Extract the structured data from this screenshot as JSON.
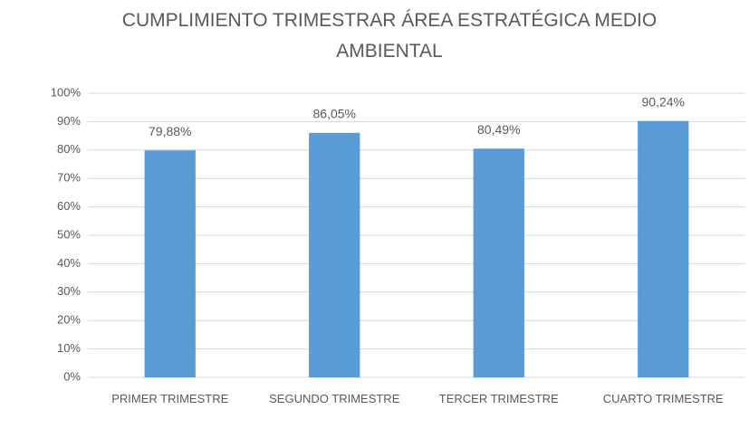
{
  "chart_data": {
    "type": "bar",
    "title": "CUMPLIMIENTO TRIMESTRAR ÁREA ESTRATÉGICA MEDIO AMBIENTAL",
    "categories": [
      "PRIMER TRIMESTRE",
      "SEGUNDO TRIMESTRE",
      "TERCER TRIMESTRE",
      "CUARTO TRIMESTRE"
    ],
    "values": [
      79.88,
      86.05,
      80.49,
      90.24
    ],
    "value_labels": [
      "79,88%",
      "86,05%",
      "80,49%",
      "90,24%"
    ],
    "color": "#5b9bd5",
    "ylim": [
      0,
      100
    ],
    "yticks": [
      {
        "value": 0,
        "label": "0%"
      },
      {
        "value": 10,
        "label": "10%"
      },
      {
        "value": 20,
        "label": "20%"
      },
      {
        "value": 30,
        "label": "30%"
      },
      {
        "value": 40,
        "label": "40%"
      },
      {
        "value": 50,
        "label": "50%"
      },
      {
        "value": 60,
        "label": "60%"
      },
      {
        "value": 70,
        "label": "70%"
      },
      {
        "value": 80,
        "label": "80%"
      },
      {
        "value": 90,
        "label": "90%"
      },
      {
        "value": 100,
        "label": "100%"
      }
    ],
    "grid": true
  }
}
